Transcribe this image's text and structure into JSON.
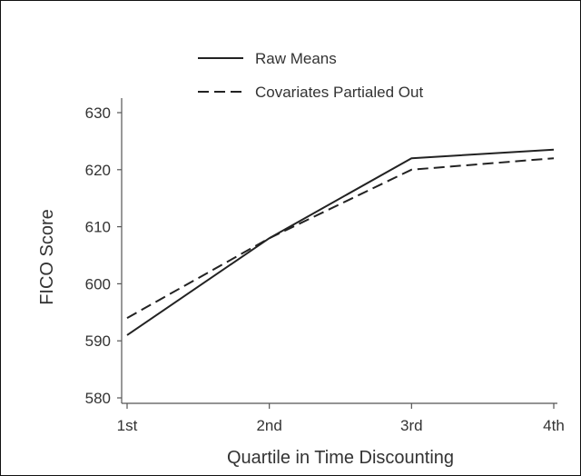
{
  "chart_data": {
    "type": "line",
    "xlabel": "Quartile in Time Discounting",
    "ylabel": "FICO Score",
    "categories": [
      "1st",
      "2nd",
      "3rd",
      "4th"
    ],
    "ylim": [
      580,
      630
    ],
    "yticks": [
      580,
      590,
      600,
      610,
      620,
      630
    ],
    "grid": false,
    "legend_position": "top-left",
    "series": [
      {
        "name": "Raw Means",
        "style": "solid",
        "color": "#222222",
        "values": [
          591,
          608,
          622,
          623.5
        ]
      },
      {
        "name": "Covariates Partialed Out",
        "style": "dashed",
        "color": "#222222",
        "values": [
          594,
          608,
          620,
          622
        ]
      }
    ]
  }
}
